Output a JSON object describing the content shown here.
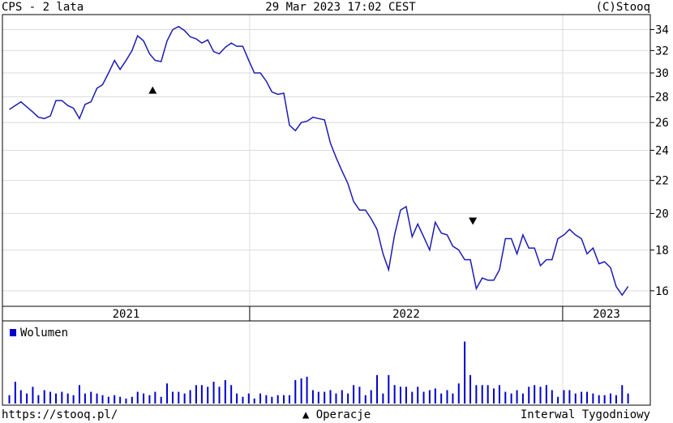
{
  "header": {
    "left": "CPS - 2 lata",
    "center": "29 Mar 2023 17:02 CEST",
    "right": "(C)Stooq"
  },
  "chart_data": {
    "type": "line",
    "log_scale": true,
    "grid": true,
    "x": [
      2021.232,
      2021.251,
      2021.269,
      2021.288,
      2021.307,
      2021.325,
      2021.344,
      2021.363,
      2021.381,
      2021.4,
      2021.419,
      2021.437,
      2021.456,
      2021.474,
      2021.493,
      2021.512,
      2021.53,
      2021.549,
      2021.568,
      2021.586,
      2021.605,
      2021.624,
      2021.642,
      2021.661,
      2021.68,
      2021.698,
      2021.717,
      2021.736,
      2021.754,
      2021.773,
      2021.792,
      2021.81,
      2021.829,
      2021.847,
      2021.866,
      2021.885,
      2021.903,
      2021.922,
      2021.941,
      2021.959,
      2021.978,
      2021.997,
      2022.015,
      2022.034,
      2022.053,
      2022.071,
      2022.09,
      2022.109,
      2022.127,
      2022.146,
      2022.165,
      2022.183,
      2022.202,
      2022.22,
      2022.239,
      2022.258,
      2022.276,
      2022.295,
      2022.314,
      2022.332,
      2022.351,
      2022.37,
      2022.388,
      2022.407,
      2022.426,
      2022.444,
      2022.463,
      2022.482,
      2022.5,
      2022.519,
      2022.537,
      2022.556,
      2022.575,
      2022.593,
      2022.612,
      2022.631,
      2022.649,
      2022.668,
      2022.687,
      2022.705,
      2022.724,
      2022.743,
      2022.761,
      2022.78,
      2022.798,
      2022.817,
      2022.836,
      2022.854,
      2022.873,
      2022.892,
      2022.91,
      2022.929,
      2022.948,
      2022.966,
      2022.985,
      2023.004,
      2023.022,
      2023.041,
      2023.06,
      2023.078,
      2023.097,
      2023.116,
      2023.134,
      2023.153,
      2023.171,
      2023.19,
      2023.209
    ],
    "values": [
      27.0,
      27.3,
      27.6,
      27.2,
      26.8,
      26.4,
      26.3,
      26.5,
      27.7,
      27.7,
      27.3,
      27.1,
      26.3,
      27.4,
      27.6,
      28.7,
      29.0,
      30.0,
      31.1,
      30.3,
      31.1,
      32.0,
      33.4,
      32.9,
      31.7,
      31.1,
      31.0,
      32.9,
      34.0,
      34.3,
      33.9,
      33.3,
      33.1,
      32.7,
      33.0,
      31.9,
      31.7,
      32.3,
      32.7,
      32.4,
      32.4,
      31.1,
      30.0,
      30.0,
      29.3,
      28.4,
      28.2,
      28.3,
      25.8,
      25.4,
      26.0,
      26.1,
      26.4,
      26.3,
      26.2,
      24.5,
      23.5,
      22.6,
      21.8,
      20.7,
      20.2,
      20.2,
      19.7,
      19.1,
      17.8,
      17.0,
      18.8,
      20.2,
      20.4,
      18.7,
      19.4,
      18.7,
      18.0,
      19.5,
      18.9,
      18.8,
      18.2,
      18.0,
      17.5,
      17.5,
      16.1,
      16.6,
      16.5,
      16.5,
      17.0,
      18.6,
      18.6,
      17.8,
      18.8,
      18.1,
      18.1,
      17.2,
      17.5,
      17.5,
      18.6,
      18.8,
      19.1,
      18.8,
      18.6,
      17.8,
      18.1,
      17.3,
      17.4,
      17.1,
      16.2,
      15.8,
      16.2
    ],
    "color": "#1c1cb4",
    "xlim": [
      2021.21,
      2023.28
    ],
    "xticks": [
      2022,
      2023
    ],
    "year_labels": [
      "2021",
      "2022",
      "2023"
    ],
    "ylim": [
      15.3,
      35.5
    ],
    "yticks": [
      16,
      18,
      20,
      22,
      24,
      26,
      28,
      30,
      32,
      34
    ],
    "operations": [
      {
        "direction": "up",
        "x": 2021.69
      },
      {
        "direction": "down",
        "x": 2022.713
      }
    ],
    "volume": {
      "name": "Wolumen",
      "color": "#0000cc",
      "values": [
        10,
        26,
        16,
        12,
        20,
        10,
        16,
        14,
        12,
        14,
        12,
        10,
        22,
        12,
        14,
        12,
        10,
        8,
        10,
        8,
        6,
        8,
        14,
        12,
        10,
        14,
        8,
        24,
        14,
        14,
        12,
        16,
        22,
        22,
        20,
        26,
        20,
        28,
        22,
        12,
        8,
        12,
        6,
        12,
        10,
        8,
        10,
        10,
        10,
        28,
        30,
        32,
        16,
        14,
        14,
        16,
        12,
        16,
        12,
        22,
        20,
        10,
        16,
        34,
        12,
        34,
        22,
        20,
        20,
        14,
        20,
        14,
        16,
        18,
        12,
        16,
        12,
        24,
        74,
        34,
        22,
        22,
        22,
        18,
        22,
        14,
        12,
        16,
        12,
        20,
        22,
        20,
        22,
        16,
        8,
        16,
        16,
        12,
        14,
        14,
        12,
        10,
        10,
        12,
        10,
        22,
        12
      ]
    }
  },
  "footer": {
    "left": "https://stooq.pl/",
    "center": "▲ Operacje",
    "right": "Interwal Tygodniowy"
  }
}
